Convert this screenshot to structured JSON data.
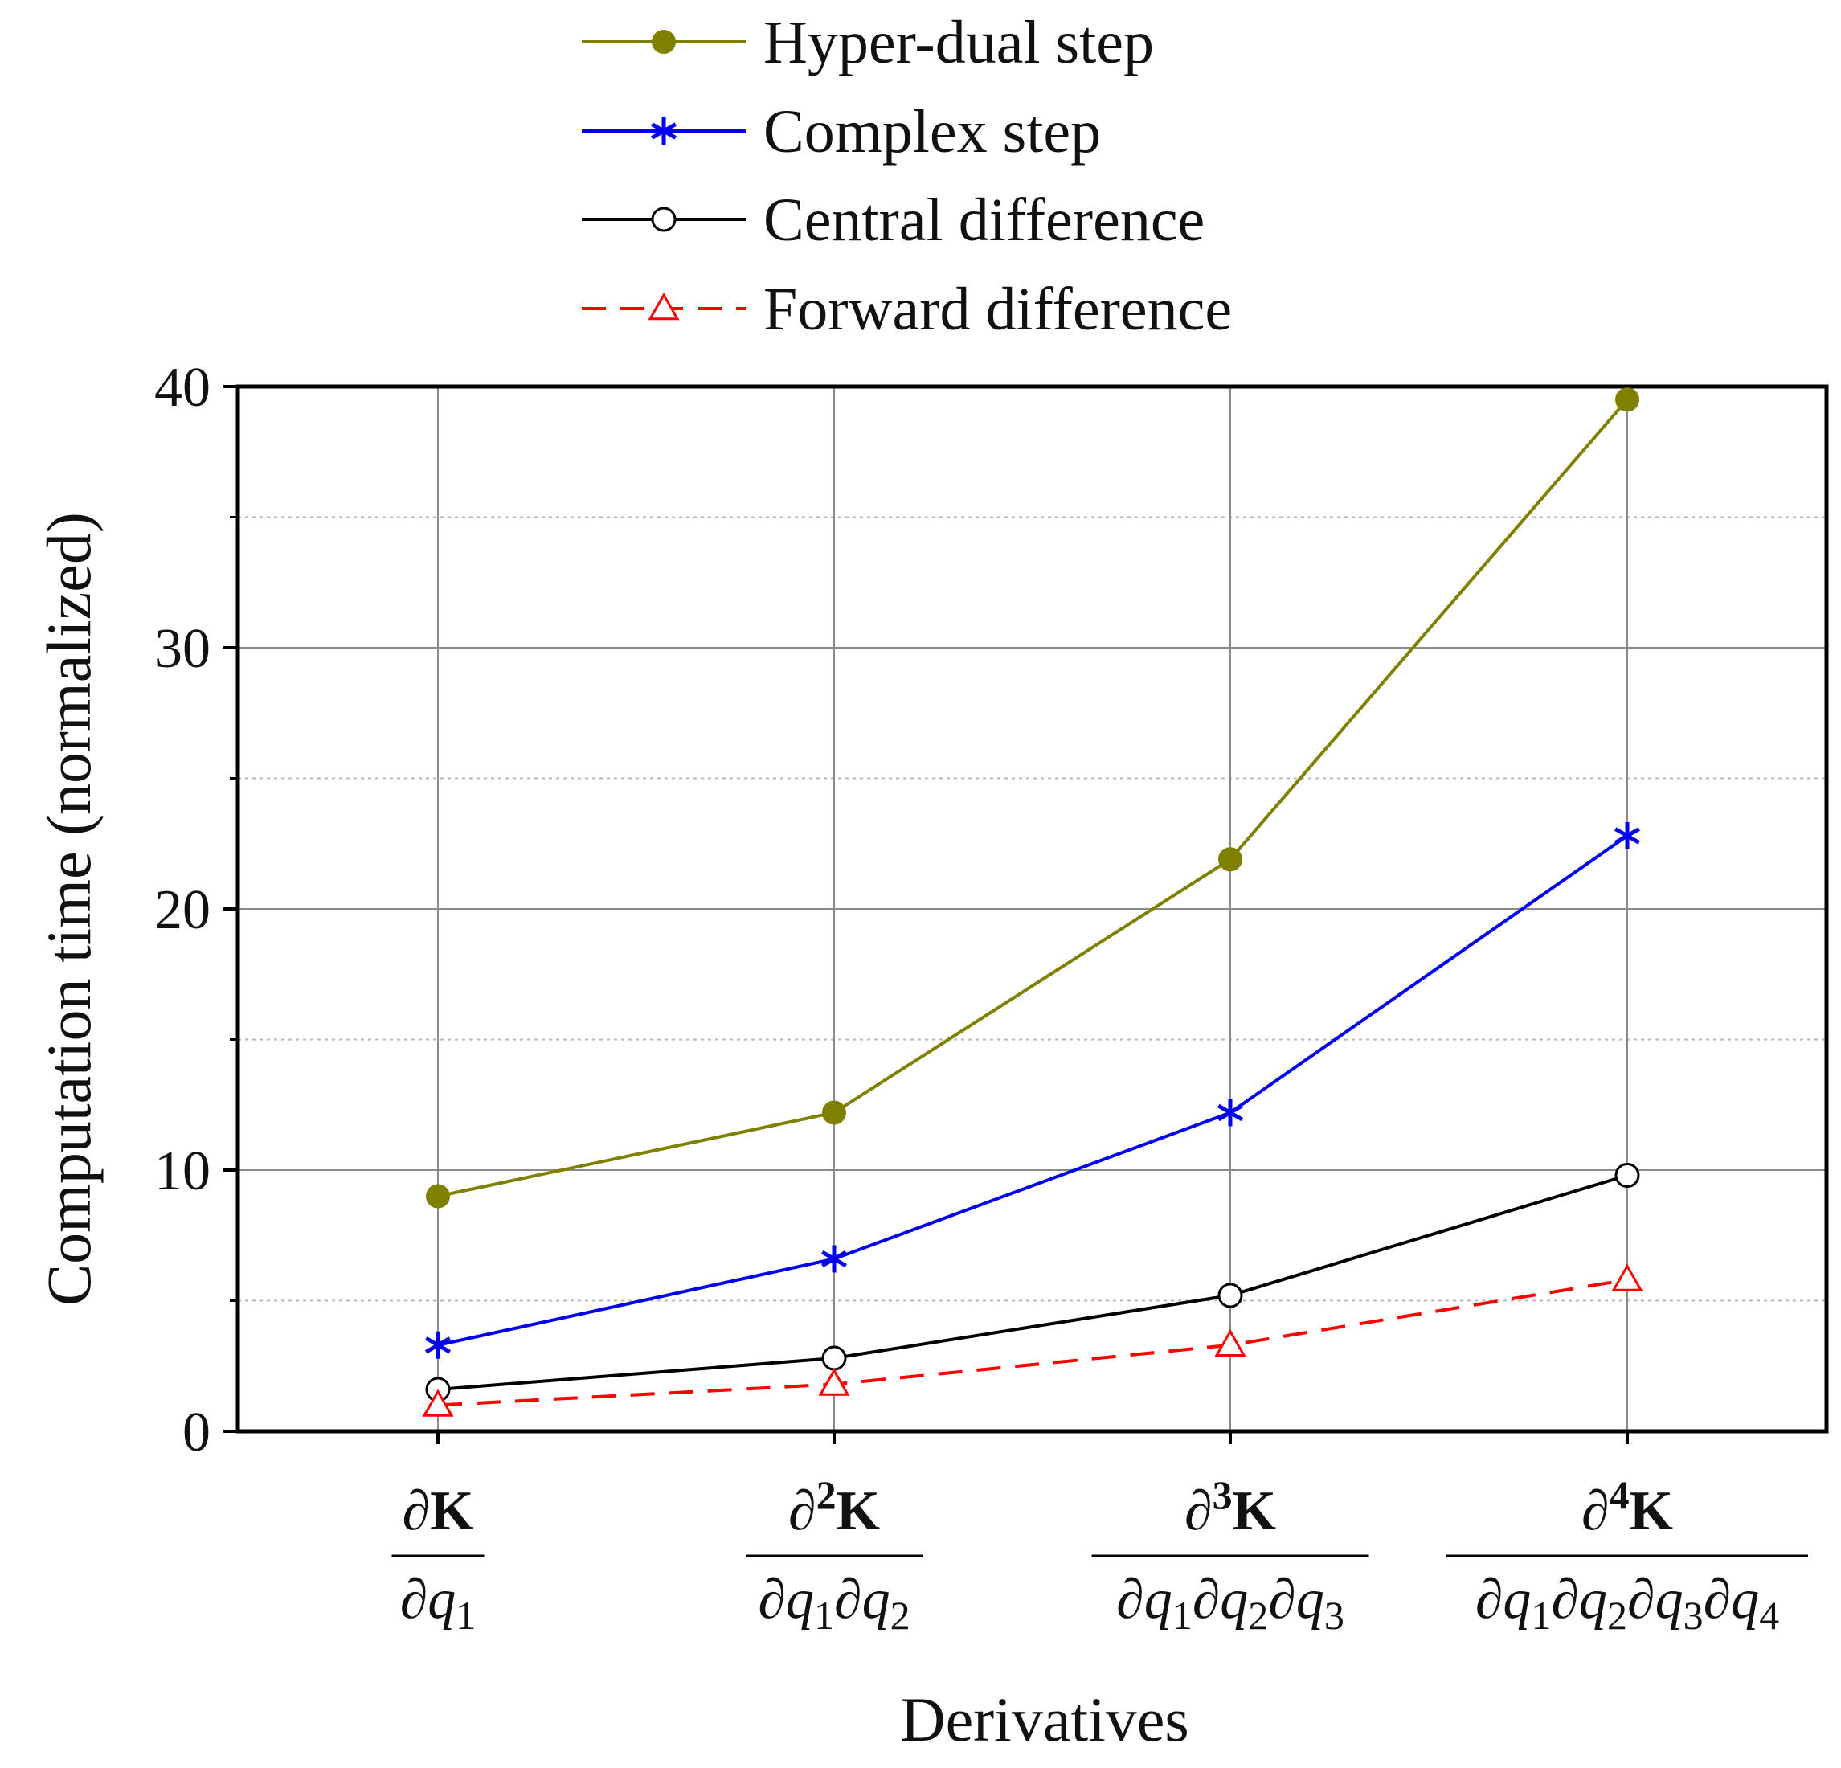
{
  "chart_data": {
    "type": "line",
    "title": "",
    "xlabel": "Derivatives",
    "ylabel": "Computation time (normalized)",
    "ylim": [
      0,
      40
    ],
    "yticks": [
      "0",
      "10",
      "20",
      "30",
      "40"
    ],
    "grid": true,
    "legend_position": "top",
    "categories": [
      {
        "numerator": "∂K",
        "denominator": "∂q1"
      },
      {
        "numerator": "∂2K",
        "denominator": "∂q1∂q2"
      },
      {
        "numerator": "∂3K",
        "denominator": "∂q1∂q2∂q3"
      },
      {
        "numerator": "∂4K",
        "denominator": "∂q1∂q2∂q3∂q4"
      }
    ],
    "series": [
      {
        "name": "Hyper-dual step",
        "color": "#808000",
        "marker": "filled-circle",
        "dash": "solid",
        "values": [
          9.0,
          12.2,
          21.9,
          39.5
        ]
      },
      {
        "name": "Complex step",
        "color": "#0000ee",
        "marker": "asterisk",
        "dash": "solid",
        "values": [
          3.3,
          6.6,
          12.2,
          22.8
        ]
      },
      {
        "name": "Central difference",
        "color": "#000000",
        "marker": "open-circle",
        "dash": "solid",
        "values": [
          1.6,
          2.8,
          5.2,
          9.8
        ]
      },
      {
        "name": "Forward difference",
        "color": "#ff0000",
        "marker": "open-triangle",
        "dash": "dashed",
        "values": [
          1.0,
          1.8,
          3.3,
          5.8
        ]
      }
    ]
  }
}
